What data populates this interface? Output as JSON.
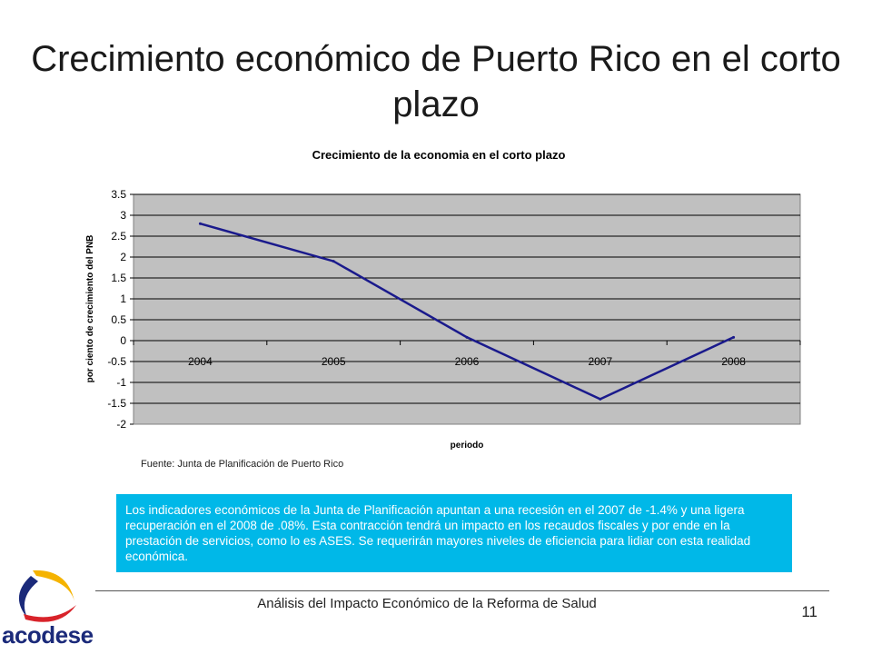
{
  "slide": {
    "title": "Crecimiento económico de Puerto Rico en el corto plazo",
    "source": "Fuente: Junta de Planificación de Puerto Rico",
    "callout": "Los indicadores económicos de la Junta de Planificación apuntan a una recesión en el 2007 de -1.4% y una ligera recuperación en el 2008 de .08%. Esta contracción tendrá un impacto en los recaudos fiscales y por ende en la prestación de servicios, como lo es ASES. Se requerirán mayores niveles de eficiencia para lidiar con esta realidad económica.",
    "footer": "Análisis del Impacto Económico de la Reforma de Salud",
    "page_number": "11",
    "logo_text": "acodese"
  },
  "chart_data": {
    "type": "line",
    "title": "Crecimiento de la economia en el corto plazo",
    "xlabel": "periodo",
    "ylabel": "por ciento de crecimiento del PNB",
    "categories": [
      "2004",
      "2005",
      "2006",
      "2007",
      "2008"
    ],
    "series": [
      {
        "values": [
          2.8,
          1.9,
          0.08,
          -1.4,
          0.08
        ],
        "color": "#1a1a8c"
      }
    ],
    "ylim": [
      -2,
      3.5
    ],
    "yticks": [
      "3.5",
      "3",
      "2.5",
      "2",
      "1.5",
      "1",
      "0.5",
      "0",
      "-0.5",
      "-1",
      "-1.5",
      "-2"
    ],
    "grid": true,
    "plot_background": "#c0c0c0",
    "legend": "none"
  },
  "colors": {
    "callout_background": "#00b8e8",
    "logo_red": "#d8232a",
    "logo_yellow": "#f5b300",
    "logo_blue": "#1b2a7a"
  }
}
